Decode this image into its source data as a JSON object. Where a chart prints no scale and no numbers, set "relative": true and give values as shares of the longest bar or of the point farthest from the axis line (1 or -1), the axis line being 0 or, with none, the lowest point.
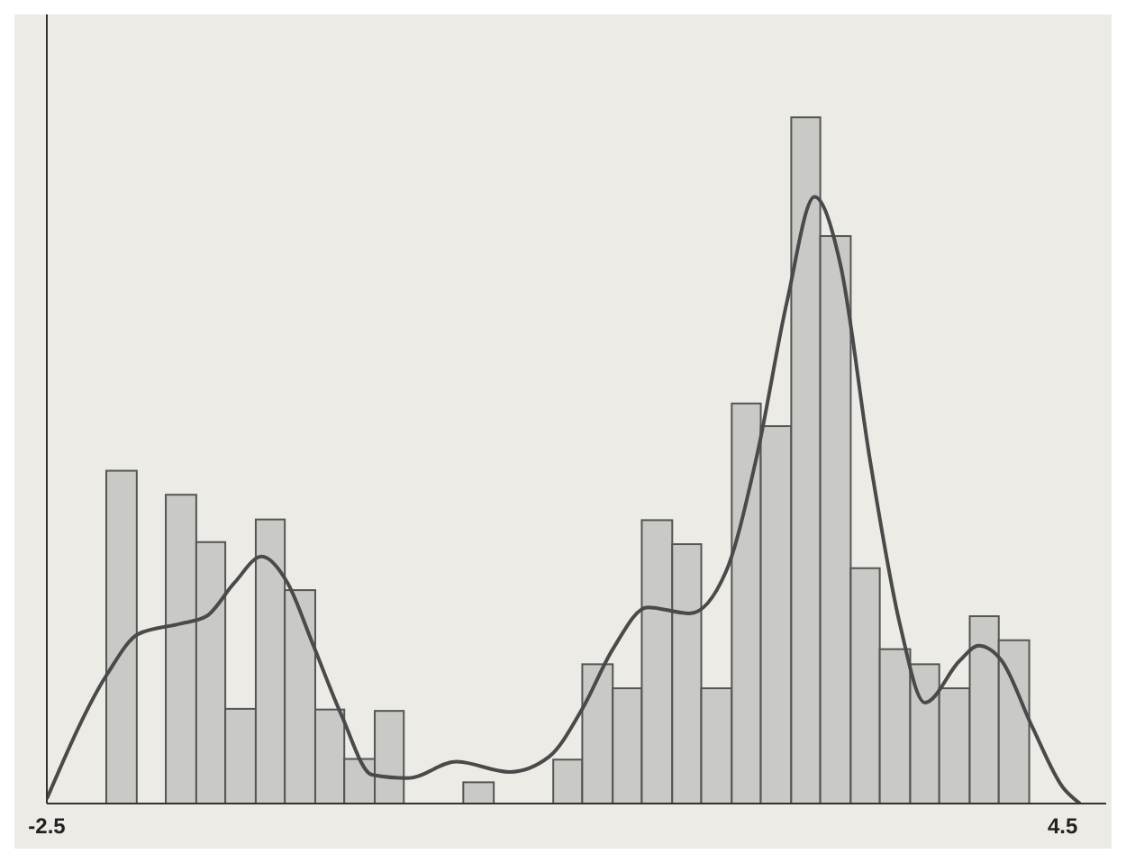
{
  "chart_data": {
    "type": "histogram",
    "relative": true,
    "color": "#c9c9c6",
    "bins": [
      -2.09,
      -1.88,
      -1.68,
      -1.47,
      -1.27,
      -1.06,
      -0.86,
      -0.65,
      -0.45,
      -0.24,
      -0.04,
      0.37,
      0.58,
      0.99,
      1.19,
      1.4,
      1.6,
      1.81,
      2.01,
      2.22,
      2.42,
      2.63,
      2.83,
      3.04,
      3.24,
      3.45,
      3.65,
      3.86,
      4.06,
      4.27
    ],
    "values": [
      0.485,
      0,
      0.45,
      0.381,
      0.138,
      0.414,
      0.311,
      0.137,
      0.065,
      0.135,
      0,
      0.031,
      0,
      0.064,
      0.203,
      0.168,
      0.413,
      0.378,
      0.168,
      0.583,
      0.55,
      1,
      0.827,
      0.343,
      0.225,
      0.203,
      0.168,
      0.273,
      0.238
    ],
    "series": [
      {
        "type": "line",
        "color": "#4a4a4a",
        "x": [
          -2.5,
          -2.08,
          -1.87,
          -1.58,
          -1.4,
          -1.21,
          -1.02,
          -0.84,
          -0.67,
          -0.47,
          -0.26,
          -0.01,
          0.32,
          0.69,
          0.96,
          1.19,
          1.4,
          1.64,
          1.93,
          2.18,
          2.39,
          2.6,
          2.79,
          2.97,
          3.17,
          3.38,
          3.55,
          3.79,
          3.92,
          4.08,
          4.29,
          4.5,
          4.62
        ],
        "values": [
          0.007,
          0.19,
          0.247,
          0.262,
          0.273,
          0.321,
          0.36,
          0.321,
          0.234,
          0.129,
          0.042,
          0.037,
          0.061,
          0.046,
          0.068,
          0.138,
          0.225,
          0.286,
          0.277,
          0.338,
          0.504,
          0.731,
          0.884,
          0.784,
          0.504,
          0.26,
          0.147,
          0.208,
          0.23,
          0.208,
          0.112,
          0.024,
          0
        ]
      }
    ],
    "xlim": [
      -2.5,
      4.8
    ],
    "xticks": [
      -2.5,
      4.5
    ],
    "grid": false,
    "legend": false
  }
}
